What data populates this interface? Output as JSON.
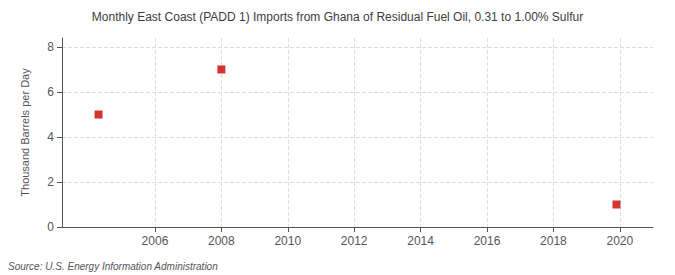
{
  "chart_data": {
    "type": "scatter",
    "title": "Monthly East Coast (PADD 1) Imports from Ghana of Residual Fuel Oil, 0.31 to 1.00% Sulfur",
    "y_label": "Thousand Barrels per Day",
    "annotations": [
      "Source: U.S. Energy Information Administration"
    ],
    "x": [
      2004.3,
      2008.0,
      2019.9
    ],
    "values": [
      5.0,
      7.0,
      1.0
    ],
    "color": "#cc0000",
    "marker": "square",
    "xlim": [
      2003.2,
      2021.0
    ],
    "ylim": [
      0,
      8.4
    ],
    "xticks": [
      2006,
      2008,
      2010,
      2012,
      2014,
      2016,
      2018,
      2020
    ],
    "yticks": [
      0,
      2,
      4,
      6,
      8
    ],
    "grid": true
  }
}
